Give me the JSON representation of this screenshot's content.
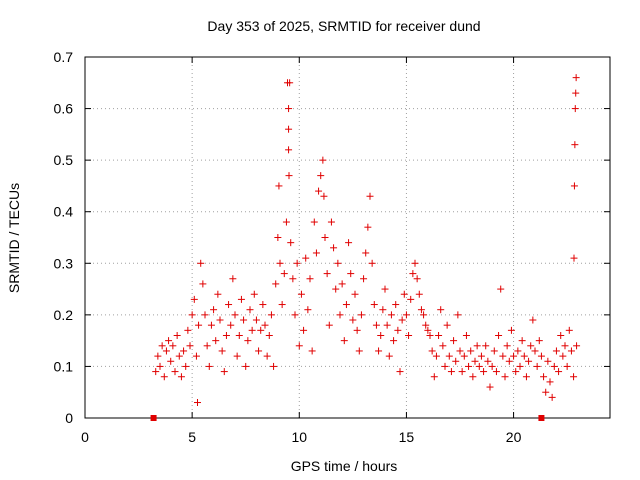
{
  "chart_data": {
    "type": "scatter",
    "title": "Day 353 of 2025, SRMTID for receiver dund",
    "xlabel": "GPS time / hours",
    "ylabel": "SRMTID / TECUs",
    "xlim": [
      0,
      24.5
    ],
    "ylim": [
      0,
      0.7
    ],
    "xticks": [
      "0",
      "5",
      "10",
      "15",
      "20"
    ],
    "yticks": [
      "0",
      "0.1",
      "0.2",
      "0.3",
      "0.4",
      "0.5",
      "0.6",
      "0.7"
    ],
    "grid": true,
    "marker": "+",
    "color": "#e00000",
    "baseline_markers_x": [
      3.2,
      21.3
    ],
    "series": [
      {
        "name": "SRMTID",
        "points": [
          [
            3.3,
            0.09
          ],
          [
            3.4,
            0.12
          ],
          [
            3.5,
            0.1
          ],
          [
            3.6,
            0.14
          ],
          [
            3.7,
            0.08
          ],
          [
            3.8,
            0.13
          ],
          [
            3.9,
            0.15
          ],
          [
            4.0,
            0.11
          ],
          [
            4.1,
            0.14
          ],
          [
            4.2,
            0.09
          ],
          [
            4.3,
            0.16
          ],
          [
            4.4,
            0.12
          ],
          [
            4.5,
            0.08
          ],
          [
            4.6,
            0.13
          ],
          [
            4.7,
            0.1
          ],
          [
            4.8,
            0.17
          ],
          [
            4.9,
            0.14
          ],
          [
            5.0,
            0.2
          ],
          [
            5.1,
            0.23
          ],
          [
            5.2,
            0.12
          ],
          [
            5.25,
            0.03
          ],
          [
            5.3,
            0.18
          ],
          [
            5.4,
            0.3
          ],
          [
            5.5,
            0.26
          ],
          [
            5.6,
            0.2
          ],
          [
            5.7,
            0.14
          ],
          [
            5.8,
            0.1
          ],
          [
            5.9,
            0.18
          ],
          [
            6.0,
            0.21
          ],
          [
            6.1,
            0.15
          ],
          [
            6.2,
            0.24
          ],
          [
            6.3,
            0.19
          ],
          [
            6.4,
            0.13
          ],
          [
            6.5,
            0.09
          ],
          [
            6.6,
            0.16
          ],
          [
            6.7,
            0.22
          ],
          [
            6.8,
            0.18
          ],
          [
            6.9,
            0.27
          ],
          [
            7.0,
            0.2
          ],
          [
            7.1,
            0.12
          ],
          [
            7.2,
            0.16
          ],
          [
            7.3,
            0.23
          ],
          [
            7.4,
            0.19
          ],
          [
            7.5,
            0.1
          ],
          [
            7.6,
            0.15
          ],
          [
            7.7,
            0.21
          ],
          [
            7.8,
            0.17
          ],
          [
            7.9,
            0.24
          ],
          [
            8.0,
            0.19
          ],
          [
            8.1,
            0.13
          ],
          [
            8.2,
            0.17
          ],
          [
            8.3,
            0.22
          ],
          [
            8.4,
            0.18
          ],
          [
            8.5,
            0.12
          ],
          [
            8.6,
            0.16
          ],
          [
            8.7,
            0.2
          ],
          [
            8.8,
            0.1
          ],
          [
            8.9,
            0.26
          ],
          [
            9.0,
            0.35
          ],
          [
            9.05,
            0.45
          ],
          [
            9.1,
            0.3
          ],
          [
            9.2,
            0.22
          ],
          [
            9.3,
            0.28
          ],
          [
            9.4,
            0.38
          ],
          [
            9.45,
            0.65
          ],
          [
            9.5,
            0.6
          ],
          [
            9.5,
            0.56
          ],
          [
            9.5,
            0.52
          ],
          [
            9.52,
            0.47
          ],
          [
            9.55,
            0.65
          ],
          [
            9.6,
            0.34
          ],
          [
            9.7,
            0.27
          ],
          [
            9.8,
            0.2
          ],
          [
            9.9,
            0.3
          ],
          [
            10.0,
            0.14
          ],
          [
            10.1,
            0.24
          ],
          [
            10.2,
            0.17
          ],
          [
            10.3,
            0.31
          ],
          [
            10.4,
            0.21
          ],
          [
            10.5,
            0.27
          ],
          [
            10.6,
            0.13
          ],
          [
            10.7,
            0.38
          ],
          [
            10.8,
            0.32
          ],
          [
            10.9,
            0.44
          ],
          [
            11.0,
            0.47
          ],
          [
            11.1,
            0.5
          ],
          [
            11.15,
            0.43
          ],
          [
            11.2,
            0.35
          ],
          [
            11.3,
            0.28
          ],
          [
            11.4,
            0.18
          ],
          [
            11.5,
            0.38
          ],
          [
            11.6,
            0.33
          ],
          [
            11.7,
            0.25
          ],
          [
            11.8,
            0.3
          ],
          [
            11.9,
            0.2
          ],
          [
            12.0,
            0.26
          ],
          [
            12.1,
            0.15
          ],
          [
            12.2,
            0.22
          ],
          [
            12.3,
            0.34
          ],
          [
            12.4,
            0.28
          ],
          [
            12.5,
            0.19
          ],
          [
            12.6,
            0.24
          ],
          [
            12.7,
            0.17
          ],
          [
            12.8,
            0.13
          ],
          [
            12.9,
            0.2
          ],
          [
            13.0,
            0.27
          ],
          [
            13.1,
            0.32
          ],
          [
            13.2,
            0.37
          ],
          [
            13.3,
            0.43
          ],
          [
            13.4,
            0.3
          ],
          [
            13.5,
            0.22
          ],
          [
            13.6,
            0.18
          ],
          [
            13.7,
            0.13
          ],
          [
            13.8,
            0.16
          ],
          [
            13.9,
            0.21
          ],
          [
            14.0,
            0.25
          ],
          [
            14.1,
            0.18
          ],
          [
            14.2,
            0.12
          ],
          [
            14.3,
            0.2
          ],
          [
            14.4,
            0.15
          ],
          [
            14.5,
            0.22
          ],
          [
            14.6,
            0.17
          ],
          [
            14.7,
            0.09
          ],
          [
            14.8,
            0.19
          ],
          [
            14.9,
            0.24
          ],
          [
            15.0,
            0.2
          ],
          [
            15.1,
            0.16
          ],
          [
            15.2,
            0.23
          ],
          [
            15.3,
            0.28
          ],
          [
            15.4,
            0.3
          ],
          [
            15.5,
            0.27
          ],
          [
            15.6,
            0.24
          ],
          [
            15.7,
            0.21
          ],
          [
            15.8,
            0.2
          ],
          [
            15.9,
            0.18
          ],
          [
            16.0,
            0.17
          ],
          [
            16.1,
            0.16
          ],
          [
            16.2,
            0.13
          ],
          [
            16.3,
            0.08
          ],
          [
            16.4,
            0.12
          ],
          [
            16.5,
            0.16
          ],
          [
            16.6,
            0.21
          ],
          [
            16.7,
            0.14
          ],
          [
            16.8,
            0.1
          ],
          [
            16.9,
            0.18
          ],
          [
            17.0,
            0.12
          ],
          [
            17.1,
            0.09
          ],
          [
            17.2,
            0.15
          ],
          [
            17.3,
            0.11
          ],
          [
            17.4,
            0.2
          ],
          [
            17.5,
            0.13
          ],
          [
            17.6,
            0.09
          ],
          [
            17.7,
            0.12
          ],
          [
            17.8,
            0.16
          ],
          [
            17.9,
            0.1
          ],
          [
            18.0,
            0.13
          ],
          [
            18.1,
            0.08
          ],
          [
            18.2,
            0.11
          ],
          [
            18.3,
            0.14
          ],
          [
            18.4,
            0.1
          ],
          [
            18.5,
            0.12
          ],
          [
            18.6,
            0.09
          ],
          [
            18.7,
            0.14
          ],
          [
            18.8,
            0.11
          ],
          [
            18.9,
            0.06
          ],
          [
            19.0,
            0.1
          ],
          [
            19.1,
            0.13
          ],
          [
            19.2,
            0.09
          ],
          [
            19.3,
            0.16
          ],
          [
            19.4,
            0.25
          ],
          [
            19.5,
            0.12
          ],
          [
            19.6,
            0.08
          ],
          [
            19.7,
            0.14
          ],
          [
            19.8,
            0.11
          ],
          [
            19.9,
            0.17
          ],
          [
            20.0,
            0.12
          ],
          [
            20.1,
            0.09
          ],
          [
            20.2,
            0.13
          ],
          [
            20.3,
            0.1
          ],
          [
            20.4,
            0.15
          ],
          [
            20.5,
            0.12
          ],
          [
            20.6,
            0.08
          ],
          [
            20.7,
            0.11
          ],
          [
            20.8,
            0.14
          ],
          [
            20.9,
            0.19
          ],
          [
            21.0,
            0.13
          ],
          [
            21.1,
            0.1
          ],
          [
            21.2,
            0.15
          ],
          [
            21.3,
            0.12
          ],
          [
            21.4,
            0.08
          ],
          [
            21.5,
            0.05
          ],
          [
            21.6,
            0.11
          ],
          [
            21.7,
            0.07
          ],
          [
            21.8,
            0.04
          ],
          [
            21.9,
            0.1
          ],
          [
            22.0,
            0.13
          ],
          [
            22.1,
            0.09
          ],
          [
            22.2,
            0.16
          ],
          [
            22.3,
            0.12
          ],
          [
            22.4,
            0.14
          ],
          [
            22.5,
            0.1
          ],
          [
            22.6,
            0.17
          ],
          [
            22.7,
            0.13
          ],
          [
            22.8,
            0.08
          ],
          [
            22.82,
            0.31
          ],
          [
            22.84,
            0.45
          ],
          [
            22.86,
            0.53
          ],
          [
            22.88,
            0.6
          ],
          [
            22.9,
            0.63
          ],
          [
            22.92,
            0.66
          ],
          [
            22.94,
            0.14
          ]
        ]
      }
    ]
  }
}
